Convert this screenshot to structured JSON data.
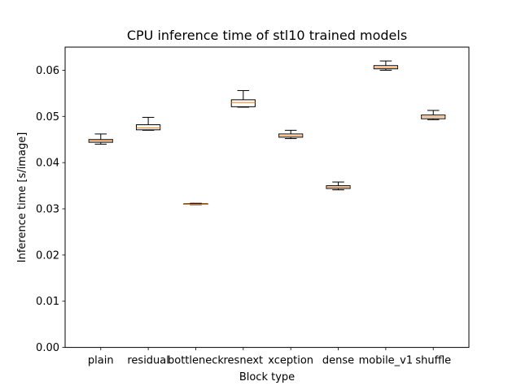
{
  "chart_data": {
    "type": "box",
    "title": "CPU inference time of stl10 trained models",
    "xlabel": "Block type",
    "ylabel": "Inference time [s/image]",
    "ylim": [
      0,
      0.065
    ],
    "yticks": [
      0.0,
      0.01,
      0.02,
      0.03,
      0.04,
      0.05,
      0.06
    ],
    "ytick_labels": [
      "0.00",
      "0.01",
      "0.02",
      "0.03",
      "0.04",
      "0.05",
      "0.06"
    ],
    "grid": false,
    "categories": [
      "plain",
      "residual",
      "bottleneck",
      "resnext",
      "xception",
      "dense",
      "mobile_v1",
      "shuffle"
    ],
    "boxes": [
      {
        "min": 0.044,
        "q1": 0.0444,
        "median": 0.0447,
        "q3": 0.045,
        "max": 0.0462
      },
      {
        "min": 0.047,
        "q1": 0.0471,
        "median": 0.0475,
        "q3": 0.0482,
        "max": 0.0498
      },
      {
        "min": 0.0309,
        "q1": 0.031,
        "median": 0.031,
        "q3": 0.0311,
        "max": 0.0312
      },
      {
        "min": 0.052,
        "q1": 0.0521,
        "median": 0.053,
        "q3": 0.0536,
        "max": 0.0556
      },
      {
        "min": 0.0452,
        "q1": 0.0455,
        "median": 0.0458,
        "q3": 0.0462,
        "max": 0.047
      },
      {
        "min": 0.0341,
        "q1": 0.0344,
        "median": 0.0347,
        "q3": 0.035,
        "max": 0.0358
      },
      {
        "min": 0.06,
        "q1": 0.0603,
        "median": 0.0606,
        "q3": 0.061,
        "max": 0.062
      },
      {
        "min": 0.0493,
        "q1": 0.0495,
        "median": 0.0499,
        "q3": 0.0503,
        "max": 0.0513
      }
    ],
    "colors": {
      "box_edge": "#000000",
      "median_line": "#ff7f0e",
      "box_fill": "#ffffff",
      "axes_edge": "#000000"
    }
  }
}
